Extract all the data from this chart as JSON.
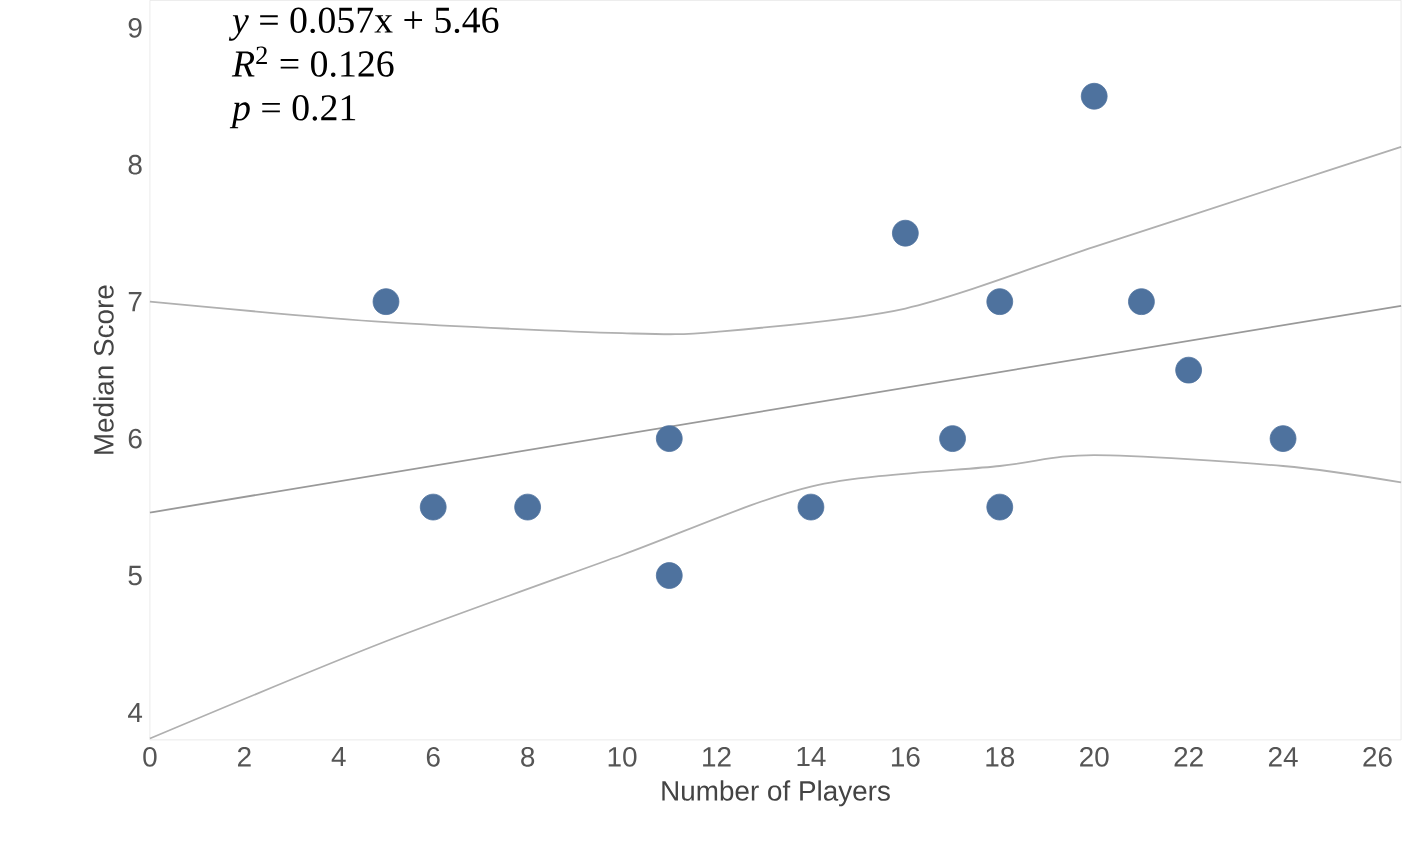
{
  "chart_data": {
    "type": "scatter",
    "xlabel": "Number of Players",
    "ylabel": "Median Score",
    "xlim": [
      0,
      26.5
    ],
    "ylim": [
      3.8,
      9.2
    ],
    "xticks": [
      0,
      2,
      4,
      6,
      8,
      10,
      12,
      14,
      16,
      18,
      20,
      22,
      24,
      26
    ],
    "yticks": [
      4,
      5,
      6,
      7,
      8,
      9
    ],
    "grid": false,
    "annotations": [
      "*y* = 0.057x + 5.46",
      "*R*$^{2}$ = 0.126",
      "*p* = 0.21"
    ],
    "series": [
      {
        "type": "line",
        "color": "#b0b0b0",
        "x": [
          0,
          5,
          10,
          12,
          16,
          20,
          24,
          26.5
        ],
        "values": [
          7.0,
          6.85,
          6.77,
          6.78,
          6.95,
          7.4,
          7.85,
          8.13
        ]
      },
      {
        "type": "line",
        "color": "#b0b0b0",
        "x": [
          0,
          5,
          10,
          14,
          18,
          20,
          24,
          26.5
        ],
        "values": [
          3.81,
          4.52,
          5.15,
          5.65,
          5.8,
          5.88,
          5.8,
          5.68
        ]
      },
      {
        "type": "line",
        "color": "#999999",
        "x": [
          0,
          26.5
        ],
        "values": [
          5.46,
          6.97
        ]
      },
      {
        "color": "#4e729e",
        "x": [
          5,
          6,
          8,
          11,
          11,
          14,
          16,
          17,
          18,
          18,
          20,
          21,
          22,
          24
        ],
        "values": [
          7,
          5.5,
          5.5,
          6,
          5,
          5.5,
          7.5,
          6,
          7,
          5.5,
          8.5,
          7,
          6.5,
          6
        ]
      }
    ]
  }
}
